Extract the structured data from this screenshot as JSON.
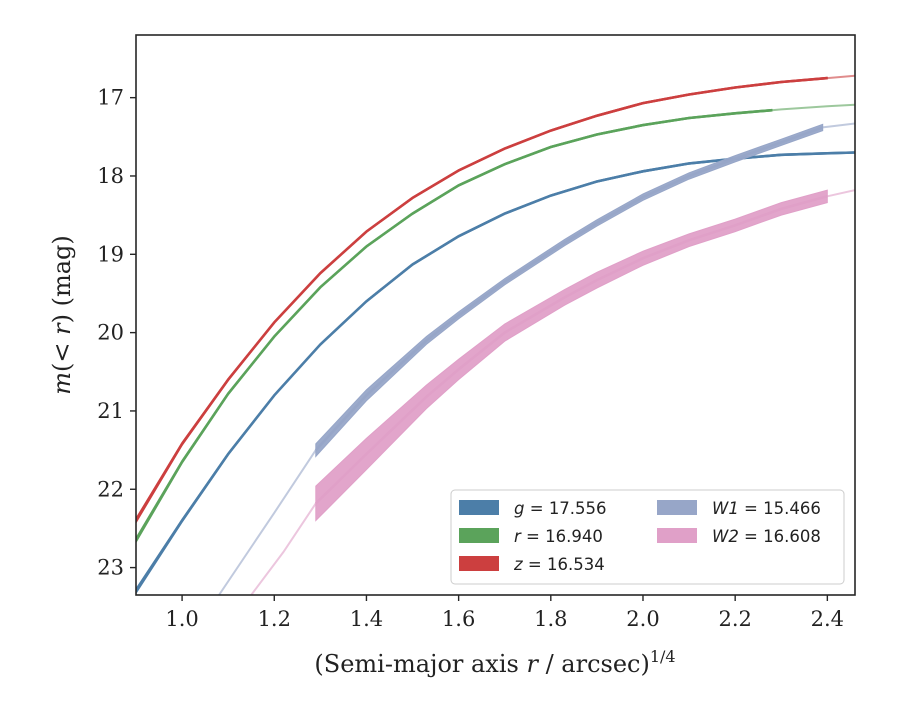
{
  "chart_data": {
    "type": "line",
    "xlabel": "(Semi-major axis r / arcsec)",
    "xlabel_italic": "r",
    "xlabel_superscript": "1/4",
    "ylabel": "m(< r) (mag)",
    "xlim": [
      0.9,
      2.46
    ],
    "ylim": [
      23.35,
      16.2
    ],
    "y_inverted": true,
    "grid": false,
    "legend_position": "lower-right",
    "xticks": [
      1.0,
      1.2,
      1.4,
      1.6,
      1.8,
      2.0,
      2.2,
      2.4
    ],
    "xtick_labels": [
      "1.0",
      "1.2",
      "1.4",
      "1.6",
      "1.8",
      "2.0",
      "2.2",
      "2.4"
    ],
    "yticks": [
      17,
      18,
      19,
      20,
      21,
      22,
      23
    ],
    "ytick_labels": [
      "17",
      "18",
      "19",
      "20",
      "21",
      "22",
      "23"
    ],
    "series": [
      {
        "name": "g = 17.556",
        "band": "g",
        "value": "17.556",
        "color": "#4c7ea8",
        "x": [
          0.9,
          1.0,
          1.1,
          1.2,
          1.3,
          1.4,
          1.5,
          1.6,
          1.7,
          1.8,
          1.9,
          2.0,
          2.1,
          2.2,
          2.3,
          2.4,
          2.46
        ],
        "y": [
          23.3,
          22.4,
          21.55,
          20.8,
          20.15,
          19.6,
          19.13,
          18.77,
          18.48,
          18.25,
          18.07,
          17.94,
          17.84,
          17.78,
          17.73,
          17.71,
          17.7
        ],
        "width": [
          0.06,
          0.04,
          0.03,
          0.02,
          0.02,
          0.02,
          0.02,
          0.02,
          0.02,
          0.02,
          0.02,
          0.02,
          0.02,
          0.02,
          0.02,
          0.02,
          0.02
        ],
        "solid_until": 2.46
      },
      {
        "name": "r = 16.940",
        "band": "r",
        "value": "16.940",
        "color": "#5ba35b",
        "x": [
          0.9,
          1.0,
          1.1,
          1.2,
          1.3,
          1.4,
          1.5,
          1.6,
          1.7,
          1.8,
          1.9,
          2.0,
          2.1,
          2.2,
          2.3,
          2.4,
          2.46
        ],
        "y": [
          22.65,
          21.65,
          20.78,
          20.05,
          19.42,
          18.9,
          18.48,
          18.12,
          17.85,
          17.63,
          17.47,
          17.35,
          17.26,
          17.2,
          17.15,
          17.11,
          17.09
        ],
        "width": [
          0.06,
          0.04,
          0.03,
          0.02,
          0.02,
          0.02,
          0.02,
          0.02,
          0.02,
          0.02,
          0.02,
          0.02,
          0.02,
          0.02,
          0.02,
          0.02,
          0.02
        ],
        "solid_until": 2.28
      },
      {
        "name": "z = 16.534",
        "band": "z",
        "value": "16.534",
        "color": "#cc3f3f",
        "x": [
          0.9,
          1.0,
          1.1,
          1.2,
          1.3,
          1.4,
          1.5,
          1.6,
          1.7,
          1.8,
          1.9,
          2.0,
          2.1,
          2.2,
          2.3,
          2.4,
          2.46
        ],
        "y": [
          22.4,
          21.42,
          20.6,
          19.87,
          19.24,
          18.71,
          18.28,
          17.93,
          17.65,
          17.42,
          17.23,
          17.07,
          16.96,
          16.87,
          16.8,
          16.75,
          16.72
        ],
        "width": [
          0.06,
          0.04,
          0.03,
          0.02,
          0.02,
          0.02,
          0.02,
          0.02,
          0.02,
          0.02,
          0.02,
          0.02,
          0.02,
          0.02,
          0.02,
          0.02,
          0.02
        ],
        "solid_until": 2.4
      },
      {
        "name": "W1 = 15.466",
        "band": "W1",
        "value": "15.466",
        "color": "#97a6c8",
        "x": [
          1.08,
          1.2,
          1.29,
          1.4,
          1.53,
          1.6,
          1.7,
          1.83,
          1.9,
          2.0,
          2.1,
          2.2,
          2.3,
          2.39,
          2.46
        ],
        "y": [
          23.35,
          22.3,
          21.5,
          20.8,
          20.1,
          19.78,
          19.35,
          18.85,
          18.6,
          18.27,
          18.0,
          17.78,
          17.57,
          17.38,
          17.33
        ],
        "width": [
          0.02,
          0.02,
          0.16,
          0.14,
          0.1,
          0.09,
          0.08,
          0.08,
          0.08,
          0.08,
          0.08,
          0.08,
          0.08,
          0.08,
          0.02
        ],
        "solid_from": 1.29,
        "solid_until": 2.39
      },
      {
        "name": "W2 = 16.608",
        "band": "W2",
        "value": "16.608",
        "color": "#e0a0c8",
        "x": [
          1.15,
          1.22,
          1.29,
          1.4,
          1.53,
          1.6,
          1.7,
          1.83,
          1.9,
          2.0,
          2.1,
          2.2,
          2.3,
          2.4,
          2.46
        ],
        "y": [
          23.35,
          22.8,
          22.18,
          21.55,
          20.82,
          20.47,
          20.0,
          19.55,
          19.33,
          19.05,
          18.82,
          18.63,
          18.42,
          18.26,
          18.18
        ],
        "width": [
          0.02,
          0.02,
          0.44,
          0.4,
          0.3,
          0.26,
          0.22,
          0.2,
          0.2,
          0.18,
          0.16,
          0.16,
          0.16,
          0.16,
          0.02
        ],
        "solid_from": 1.29,
        "solid_until": 2.4
      }
    ],
    "legend": [
      {
        "band": "g",
        "value": "17.556",
        "color": "#4c7ea8"
      },
      {
        "band": "r",
        "value": "16.940",
        "color": "#5ba35b"
      },
      {
        "band": "z",
        "value": "16.534",
        "color": "#cc3f3f"
      },
      {
        "band": "W1",
        "value": "15.466",
        "color": "#97a6c8"
      },
      {
        "band": "W2",
        "value": "16.608",
        "color": "#e0a0c8"
      }
    ]
  }
}
